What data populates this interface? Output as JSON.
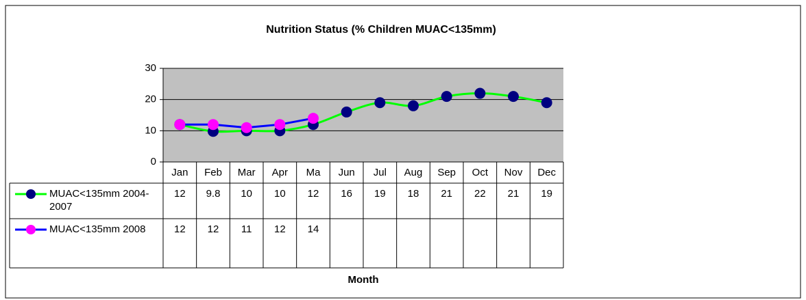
{
  "chart_data": {
    "type": "line",
    "title": "Nutrition Status (% Children MUAC<135mm)",
    "x_label": "Month",
    "categories": [
      "Jan",
      "Feb",
      "Mar",
      "Apr",
      "Ma",
      "Jun",
      "Jul",
      "Aug",
      "Sep",
      "Oct",
      "Nov",
      "Dec"
    ],
    "series": [
      {
        "name": "MUAC<135mm 2004-2007",
        "color": "#00ff00",
        "marker_color": "#000080",
        "smooth": true,
        "values": [
          12,
          9.8,
          10,
          10,
          12,
          16,
          19,
          18,
          21,
          22,
          21,
          19
        ]
      },
      {
        "name": "MUAC<135mm 2008",
        "color": "#0000ff",
        "marker_color": "#ff00ff",
        "smooth": false,
        "values": [
          12,
          12,
          11,
          12,
          14,
          null,
          null,
          null,
          null,
          null,
          null,
          null
        ]
      }
    ],
    "ylim": [
      0,
      30
    ],
    "yticks": [
      0,
      10,
      20,
      30
    ],
    "grid": true,
    "plot_background": "#c0c0c0"
  }
}
